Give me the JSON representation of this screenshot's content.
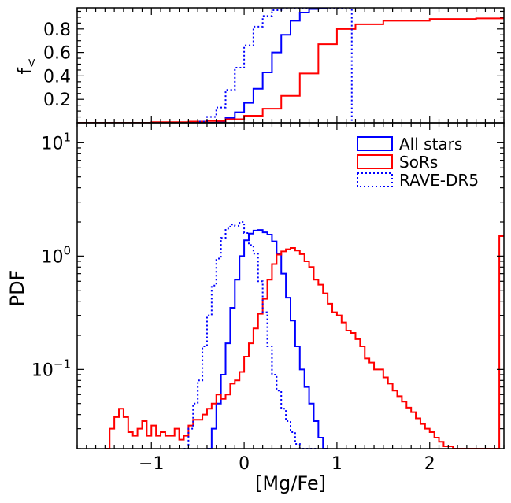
{
  "chart_data": [
    {
      "type": "line",
      "panel": "top",
      "ylabel": "f<",
      "yscale": "linear",
      "xlim": [
        -1.8,
        2.8
      ],
      "ylim": [
        0.0,
        0.98
      ],
      "yticks": [
        0.2,
        0.4,
        0.6,
        0.8
      ],
      "ytick_labels": [
        "0.2",
        "0.4",
        "0.6",
        "0.8"
      ],
      "series": [
        {
          "key": "all",
          "color": "#0000ff",
          "dash": "solid",
          "x": [
            -0.4,
            -0.3,
            -0.2,
            -0.1,
            0.0,
            0.1,
            0.2,
            0.3,
            0.4,
            0.5,
            0.6,
            0.7,
            0.8,
            0.9
          ],
          "y": [
            0.0,
            0.01,
            0.04,
            0.09,
            0.17,
            0.29,
            0.43,
            0.6,
            0.75,
            0.87,
            0.94,
            0.97,
            0.98,
            0.98
          ]
        },
        {
          "key": "sors",
          "color": "#ff0000",
          "dash": "solid",
          "x": [
            -1.8,
            -1.0,
            -0.6,
            -0.4,
            -0.2,
            0.0,
            0.2,
            0.4,
            0.6,
            0.8,
            1.0,
            1.2,
            1.5,
            2.0,
            2.5,
            2.75,
            2.8
          ],
          "y": [
            0.0,
            0.005,
            0.01,
            0.015,
            0.03,
            0.06,
            0.12,
            0.23,
            0.42,
            0.67,
            0.8,
            0.84,
            0.87,
            0.885,
            0.89,
            0.89,
            0.89
          ]
        },
        {
          "key": "rave",
          "color": "#0000ff",
          "dash": "dotted",
          "x": [
            -0.6,
            -0.5,
            -0.4,
            -0.3,
            -0.2,
            -0.1,
            0.0,
            0.1,
            0.2,
            0.3,
            0.4,
            0.5,
            0.6,
            1.15,
            1.16
          ],
          "y": [
            0.0,
            0.01,
            0.05,
            0.13,
            0.28,
            0.47,
            0.66,
            0.82,
            0.91,
            0.96,
            0.98,
            0.98,
            0.98,
            0.98,
            0.0
          ]
        }
      ]
    },
    {
      "type": "line",
      "panel": "bottom",
      "xlabel": "[Mg/Fe]",
      "ylabel": "PDF",
      "yscale": "log",
      "xlim": [
        -1.8,
        2.8
      ],
      "ylim": [
        0.02,
        15
      ],
      "xticks": [
        -1,
        0,
        1,
        2
      ],
      "xtick_labels": [
        "−1",
        "0",
        "1",
        "2"
      ],
      "yticks": [
        0.1,
        1,
        10
      ],
      "ytick_labels": [
        {
          "base": "10",
          "exp": "−1"
        },
        {
          "base": "10",
          "exp": "0"
        },
        {
          "base": "10",
          "exp": "1"
        }
      ],
      "legend": {
        "position": "top-right",
        "entries": [
          {
            "label": "All stars",
            "color": "#0000ff",
            "dash": "solid"
          },
          {
            "label": "SoRs",
            "color": "#ff0000",
            "dash": "solid"
          },
          {
            "label": "RAVE-DR5",
            "color": "#0000ff",
            "dash": "dotted"
          }
        ]
      },
      "series": [
        {
          "key": "all",
          "color": "#0000ff",
          "dash": "solid",
          "x": [
            -0.4,
            -0.35,
            -0.3,
            -0.25,
            -0.2,
            -0.15,
            -0.1,
            -0.05,
            0.0,
            0.05,
            0.1,
            0.15,
            0.2,
            0.25,
            0.3,
            0.35,
            0.4,
            0.45,
            0.5,
            0.55,
            0.6,
            0.65,
            0.7,
            0.75,
            0.8,
            0.85,
            0.9
          ],
          "y": [
            0.02,
            0.03,
            0.05,
            0.09,
            0.17,
            0.35,
            0.62,
            1.0,
            1.38,
            1.58,
            1.68,
            1.7,
            1.62,
            1.55,
            1.35,
            1.05,
            0.7,
            0.43,
            0.27,
            0.16,
            0.1,
            0.07,
            0.05,
            0.035,
            0.025,
            0.02,
            0.02
          ]
        },
        {
          "key": "sors",
          "color": "#ff0000",
          "dash": "solid",
          "x": [
            -1.5,
            -1.45,
            -1.4,
            -1.35,
            -1.3,
            -1.25,
            -1.2,
            -1.15,
            -1.1,
            -1.05,
            -1.0,
            -0.95,
            -0.9,
            -0.85,
            -0.8,
            -0.75,
            -0.7,
            -0.65,
            -0.6,
            -0.55,
            -0.5,
            -0.45,
            -0.4,
            -0.35,
            -0.3,
            -0.25,
            -0.2,
            -0.15,
            -0.1,
            -0.05,
            0.0,
            0.05,
            0.1,
            0.15,
            0.2,
            0.25,
            0.3,
            0.35,
            0.4,
            0.45,
            0.5,
            0.55,
            0.6,
            0.65,
            0.7,
            0.75,
            0.8,
            0.85,
            0.9,
            0.95,
            1.0,
            1.05,
            1.1,
            1.15,
            1.2,
            1.25,
            1.3,
            1.35,
            1.4,
            1.45,
            1.5,
            1.55,
            1.6,
            1.65,
            1.7,
            1.75,
            1.8,
            1.85,
            1.9,
            1.95,
            2.0,
            2.05,
            2.1,
            2.15,
            2.2,
            2.25,
            2.75,
            2.8
          ],
          "y": [
            0.02,
            0.03,
            0.038,
            0.045,
            0.038,
            0.028,
            0.026,
            0.03,
            0.035,
            0.026,
            0.032,
            0.026,
            0.028,
            0.026,
            0.026,
            0.03,
            0.024,
            0.026,
            0.032,
            0.036,
            0.036,
            0.04,
            0.045,
            0.05,
            0.06,
            0.055,
            0.06,
            0.075,
            0.08,
            0.095,
            0.13,
            0.17,
            0.23,
            0.31,
            0.42,
            0.62,
            0.85,
            1.03,
            1.1,
            1.15,
            1.18,
            1.12,
            1.04,
            0.9,
            0.8,
            0.62,
            0.56,
            0.47,
            0.38,
            0.32,
            0.3,
            0.26,
            0.22,
            0.21,
            0.185,
            0.16,
            0.125,
            0.115,
            0.1,
            0.1,
            0.085,
            0.075,
            0.065,
            0.058,
            0.052,
            0.046,
            0.042,
            0.037,
            0.033,
            0.03,
            0.028,
            0.025,
            0.023,
            0.021,
            0.021,
            0.02,
            1.5,
            1.5
          ]
        },
        {
          "key": "rave",
          "color": "#0000ff",
          "dash": "dotted",
          "x": [
            -0.65,
            -0.6,
            -0.55,
            -0.5,
            -0.45,
            -0.4,
            -0.35,
            -0.3,
            -0.25,
            -0.2,
            -0.15,
            -0.1,
            -0.05,
            0.0,
            0.05,
            0.1,
            0.15,
            0.2,
            0.25,
            0.3,
            0.35,
            0.4,
            0.45,
            0.5,
            0.55,
            0.6,
            0.65,
            0.7,
            0.75,
            0.8
          ],
          "y": [
            0.02,
            0.03,
            0.05,
            0.08,
            0.16,
            0.3,
            0.55,
            0.95,
            1.45,
            1.75,
            1.9,
            1.85,
            2.0,
            1.6,
            1.25,
            1.05,
            0.6,
            0.32,
            0.16,
            0.09,
            0.065,
            0.045,
            0.035,
            0.028,
            0.022,
            0.02,
            0.02,
            0.02,
            0.02,
            0.02
          ]
        }
      ]
    }
  ]
}
